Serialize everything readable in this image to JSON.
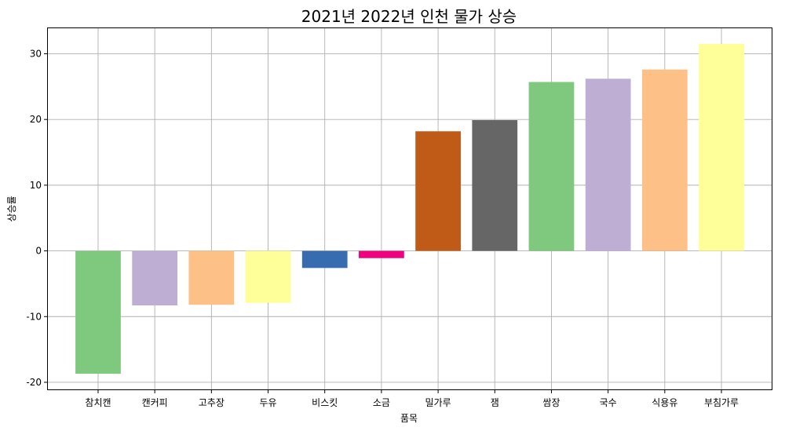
{
  "chart_data": {
    "type": "bar",
    "title": "2021년 2022년 인천 물가 상승",
    "xlabel": "품목",
    "ylabel": "상승률",
    "categories": [
      "참치캔",
      "캔커피",
      "고추장",
      "두유",
      "비스킷",
      "소금",
      "밀가루",
      "잼",
      "쌈장",
      "국수",
      "식용유",
      "부침가루"
    ],
    "values": [
      -18.7,
      -8.3,
      -8.2,
      -7.9,
      -2.6,
      -1.1,
      18.2,
      19.9,
      25.7,
      26.2,
      27.6,
      31.5
    ],
    "bar_colors": [
      "#7fc97f",
      "#beaed4",
      "#fdc086",
      "#ffff99",
      "#386cb0",
      "#f0027f",
      "#bf5b17",
      "#666666",
      "#7fc97f",
      "#beaed4",
      "#fdc086",
      "#ffff99"
    ],
    "yticks": [
      -20,
      -10,
      0,
      10,
      20,
      30
    ],
    "ylim": [
      -21.2,
      34.0
    ],
    "grid": true,
    "legend": "none"
  }
}
